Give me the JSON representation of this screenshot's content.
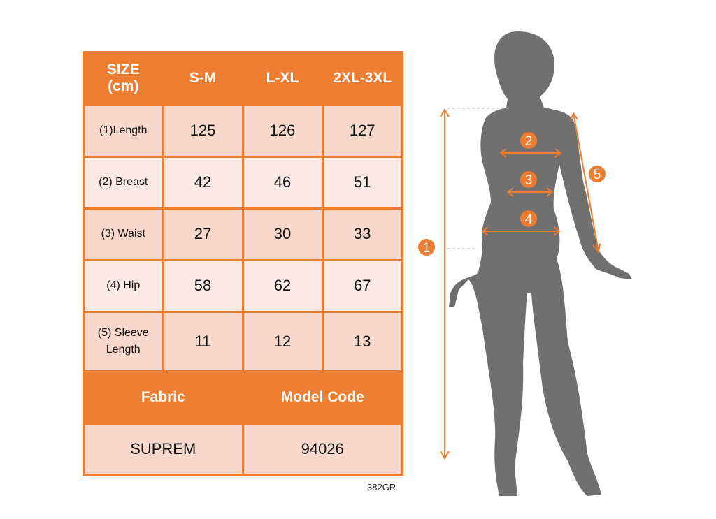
{
  "colors": {
    "accent": "#ED7D31",
    "row_dark": "#F8D8CC",
    "row_light": "#FBEAE4",
    "silhouette": "#707070"
  },
  "table": {
    "header": [
      "SIZE\n(cm)",
      "S-M",
      "L-XL",
      "2XL-3XL"
    ],
    "rows": [
      {
        "label": "(1)Length",
        "values": [
          "125",
          "126",
          "127"
        ]
      },
      {
        "label": "(2) Breast",
        "values": [
          "42",
          "46",
          "51"
        ]
      },
      {
        "label": "(3) Waist",
        "values": [
          "27",
          "30",
          "33"
        ]
      },
      {
        "label": "(4) Hip",
        "values": [
          "58",
          "62",
          "67"
        ]
      },
      {
        "label": "(5) Sleeve\nLength",
        "values": [
          "11",
          "12",
          "13"
        ]
      }
    ],
    "footer_header": [
      "Fabric",
      "Model Code"
    ],
    "footer_values": [
      "SUPREM",
      "94026"
    ]
  },
  "product_code": "382GR",
  "figure": {
    "markers": [
      "1",
      "2",
      "3",
      "4",
      "5"
    ]
  }
}
